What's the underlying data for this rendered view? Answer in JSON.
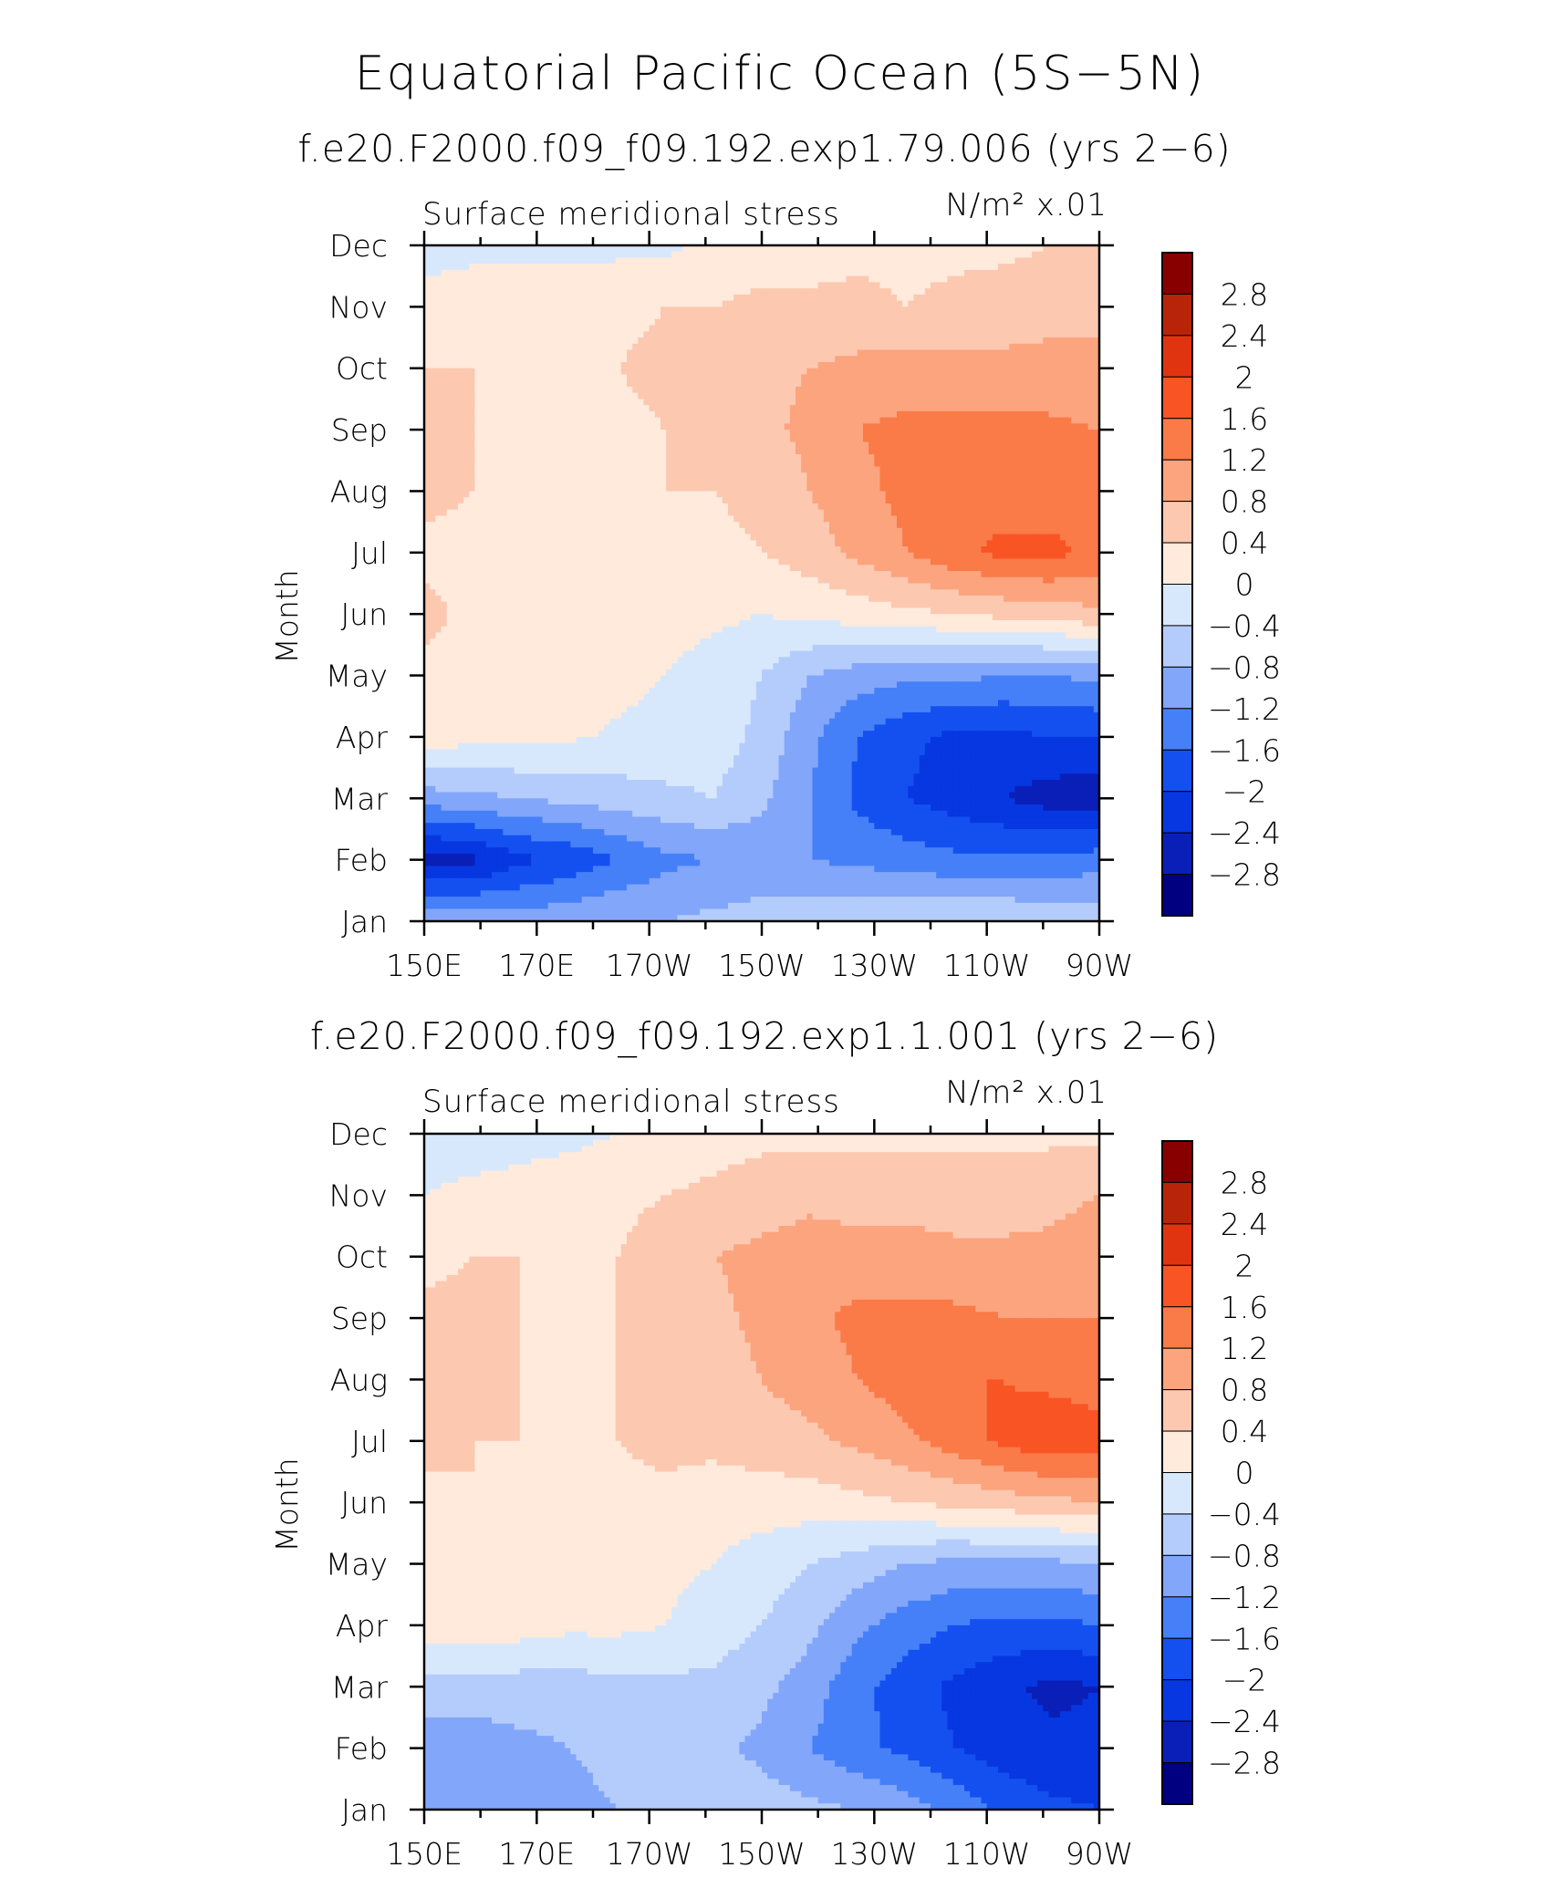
{
  "figure": {
    "title": "Equatorial Pacific Ocean (5S−5N)"
  },
  "chart_data": [
    {
      "type": "heatmap",
      "title": "f.e20.F2000.f09_f09.192.exp1.79.006 (yrs 2−6)",
      "left_label": "Surface meridional stress",
      "units_label": "N/m² x.01",
      "ylabel": "Month",
      "xlabel": "",
      "x_ticks": [
        "150E",
        "170E",
        "170W",
        "150W",
        "130W",
        "110W",
        "90W"
      ],
      "x_values": [
        150,
        170,
        190,
        210,
        230,
        250,
        270
      ],
      "y_ticks": [
        "Jan",
        "Feb",
        "Mar",
        "Apr",
        "May",
        "Jun",
        "Jul",
        "Aug",
        "Sep",
        "Oct",
        "Nov",
        "Dec"
      ],
      "levels": [
        -2.8,
        -2.4,
        -2,
        -1.6,
        -1.2,
        -0.8,
        -0.4,
        0,
        0.4,
        0.8,
        1.2,
        1.6,
        2,
        2.4,
        2.8
      ],
      "z": [
        [
          -0.8,
          -0.9,
          -1.0,
          -0.9,
          -0.8,
          -0.8,
          -0.7,
          -0.6,
          -0.5,
          -0.5,
          -0.4,
          -0.4,
          -0.4,
          -0.5,
          -0.5
        ],
        [
          -2.6,
          -2.5,
          -2.1,
          -1.9,
          -1.6,
          -1.3,
          -1.2,
          -1.1,
          -1.2,
          -1.3,
          -1.4,
          -1.5,
          -1.5,
          -1.5,
          -1.4
        ],
        [
          -1.0,
          -0.9,
          -0.8,
          -0.7,
          -0.6,
          -0.5,
          -0.4,
          -0.7,
          -1.2,
          -1.7,
          -2.0,
          -2.2,
          -2.4,
          -2.6,
          -2.7
        ],
        [
          0.2,
          0.15,
          0.1,
          0.05,
          -0.05,
          -0.1,
          -0.2,
          -0.5,
          -1.1,
          -1.6,
          -1.9,
          -2.1,
          -2.1,
          -2.0,
          -2.0
        ],
        [
          0.3,
          0.3,
          0.2,
          0.2,
          0.1,
          0.0,
          -0.2,
          -0.4,
          -0.8,
          -1.0,
          -1.1,
          -1.1,
          -1.2,
          -1.2,
          -1.1
        ],
        [
          0.5,
          0.3,
          0.4,
          0.35,
          0.3,
          0.2,
          0.1,
          0.0,
          0.1,
          0.2,
          0.3,
          0.4,
          0.5,
          0.6,
          0.7
        ],
        [
          0.3,
          0.3,
          0.3,
          0.3,
          0.3,
          0.3,
          0.3,
          0.4,
          0.6,
          0.9,
          1.2,
          1.5,
          1.7,
          1.7,
          1.5
        ],
        [
          0.5,
          0.4,
          0.4,
          0.3,
          0.3,
          0.4,
          0.4,
          0.5,
          0.8,
          1.1,
          1.3,
          1.4,
          1.4,
          1.4,
          1.3
        ],
        [
          0.4,
          0.4,
          0.3,
          0.3,
          0.3,
          0.4,
          0.5,
          0.7,
          0.9,
          1.2,
          1.3,
          1.3,
          1.3,
          1.3,
          1.2
        ],
        [
          0.4,
          0.4,
          0.3,
          0.3,
          0.4,
          0.5,
          0.6,
          0.7,
          0.8,
          0.9,
          1.0,
          0.9,
          0.9,
          0.9,
          0.8
        ],
        [
          0.2,
          0.2,
          0.2,
          0.3,
          0.3,
          0.4,
          0.4,
          0.5,
          0.5,
          0.5,
          0.4,
          0.5,
          0.6,
          0.7,
          0.8
        ],
        [
          -0.2,
          -0.1,
          -0.1,
          -0.1,
          -0.1,
          -0.1,
          0.1,
          0.2,
          0.2,
          0.3,
          0.3,
          0.3,
          0.3,
          0.4,
          0.4
        ]
      ],
      "colorbar_labels": [
        "2.8",
        "2.4",
        "2",
        "1.6",
        "1.2",
        "0.8",
        "0.4",
        "0",
        "−0.4",
        "−0.8",
        "−1.2",
        "−1.6",
        "−2",
        "−2.4",
        "−2.8"
      ]
    },
    {
      "type": "heatmap",
      "title": "f.e20.F2000.f09_f09.192.exp1.1.001 (yrs 2−6)",
      "left_label": "Surface meridional stress",
      "units_label": "N/m² x.01",
      "ylabel": "Month",
      "xlabel": "",
      "x_ticks": [
        "150E",
        "170E",
        "170W",
        "150W",
        "130W",
        "110W",
        "90W"
      ],
      "x_values": [
        150,
        170,
        190,
        210,
        230,
        250,
        270
      ],
      "y_ticks": [
        "Jan",
        "Feb",
        "Mar",
        "Apr",
        "May",
        "Jun",
        "Jul",
        "Aug",
        "Sep",
        "Oct",
        "Nov",
        "Dec"
      ],
      "levels": [
        -2.8,
        -2.4,
        -2,
        -1.6,
        -1.2,
        -0.8,
        -0.4,
        0,
        0.4,
        0.8,
        1.2,
        1.6,
        2,
        2.4,
        2.8
      ],
      "z": [
        [
          -1.0,
          -1.0,
          -1.0,
          -0.9,
          -0.8,
          -0.7,
          -0.6,
          -0.6,
          -0.7,
          -0.8,
          -1.0,
          -1.3,
          -1.7,
          -1.9,
          -2.0
        ],
        [
          -1.0,
          -1.0,
          -0.9,
          -0.8,
          -0.7,
          -0.6,
          -0.7,
          -0.9,
          -1.2,
          -1.5,
          -1.7,
          -2.0,
          -2.2,
          -2.3,
          -2.3
        ],
        [
          -0.6,
          -0.6,
          -0.6,
          -0.6,
          -0.5,
          -0.5,
          -0.5,
          -0.7,
          -1.0,
          -1.5,
          -1.8,
          -2.1,
          -2.3,
          -2.5,
          -2.4
        ],
        [
          0.2,
          0.3,
          0.2,
          0.1,
          0.1,
          0.0,
          -0.2,
          -0.4,
          -0.7,
          -1.1,
          -1.4,
          -1.6,
          -1.7,
          -1.7,
          -1.6
        ],
        [
          0.3,
          0.3,
          0.3,
          0.2,
          0.2,
          0.1,
          0.0,
          -0.2,
          -0.4,
          -0.6,
          -0.8,
          -0.9,
          -0.9,
          -0.9,
          -0.8
        ],
        [
          0.3,
          0.4,
          0.3,
          0.3,
          0.3,
          0.3,
          0.2,
          0.2,
          0.2,
          0.3,
          0.4,
          0.5,
          0.6,
          0.7,
          0.8
        ],
        [
          0.5,
          0.4,
          0.4,
          0.3,
          0.4,
          0.5,
          0.5,
          0.6,
          0.7,
          0.9,
          1.1,
          1.4,
          1.7,
          1.9,
          1.8
        ],
        [
          0.5,
          0.5,
          0.4,
          0.3,
          0.4,
          0.5,
          0.6,
          0.8,
          1.0,
          1.2,
          1.4,
          1.6,
          1.6,
          1.5,
          1.4
        ],
        [
          0.5,
          0.5,
          0.4,
          0.3,
          0.4,
          0.5,
          0.7,
          0.9,
          1.1,
          1.3,
          1.3,
          1.3,
          1.2,
          1.2,
          1.2
        ],
        [
          0.3,
          0.4,
          0.4,
          0.3,
          0.4,
          0.6,
          0.8,
          0.9,
          1.0,
          1.0,
          1.0,
          0.9,
          0.9,
          0.9,
          1.0
        ],
        [
          0.0,
          0.1,
          0.1,
          0.2,
          0.3,
          0.4,
          0.5,
          0.6,
          0.7,
          0.6,
          0.6,
          0.6,
          0.6,
          0.7,
          0.8
        ],
        [
          -0.2,
          -0.2,
          -0.1,
          -0.1,
          0.0,
          0.1,
          0.2,
          0.3,
          0.3,
          0.3,
          0.3,
          0.3,
          0.3,
          0.3,
          0.3
        ]
      ],
      "colorbar_labels": [
        "2.8",
        "2.4",
        "2",
        "1.6",
        "1.2",
        "0.8",
        "0.4",
        "0",
        "−0.4",
        "−0.8",
        "−1.2",
        "−1.6",
        "−2",
        "−2.4",
        "−2.8"
      ]
    }
  ],
  "colors": {
    "scale": [
      "#000080",
      "#0A1FB8",
      "#0737E0",
      "#1450F0",
      "#4680F8",
      "#82A6FA",
      "#B4CCFC",
      "#D8E8FC",
      "#FFEADC",
      "#FCC8B0",
      "#FCA47E",
      "#FA7A48",
      "#F85424",
      "#E03410",
      "#B82408",
      "#880000"
    ]
  }
}
